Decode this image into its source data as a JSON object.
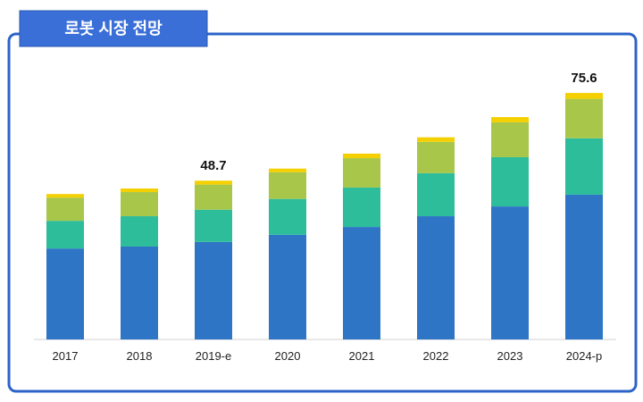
{
  "chart_data": {
    "type": "stacked_bar",
    "title": "로봇 시장 전망",
    "categories": [
      "2017",
      "2018",
      "2019-e",
      "2020",
      "2021",
      "2022",
      "2023",
      "2024-p"
    ],
    "series": [
      {
        "color": "#2e75c6",
        "values": [
          27.9,
          28.5,
          29.9,
          32.1,
          34.5,
          37.8,
          40.8,
          44.4
        ]
      },
      {
        "color": "#2dbd9b",
        "values": [
          8.5,
          9.3,
          9.9,
          11.0,
          12.1,
          13.2,
          15.1,
          17.3
        ]
      },
      {
        "color": "#a7c64a",
        "values": [
          7.1,
          7.4,
          7.7,
          8.2,
          9.0,
          9.6,
          10.7,
          12.1
        ]
      },
      {
        "color": "#f5d000",
        "values": [
          1.1,
          1.1,
          1.2,
          1.1,
          1.4,
          1.4,
          1.6,
          1.8
        ]
      }
    ],
    "totals": [
      null,
      null,
      48.7,
      null,
      null,
      null,
      null,
      75.6
    ]
  }
}
